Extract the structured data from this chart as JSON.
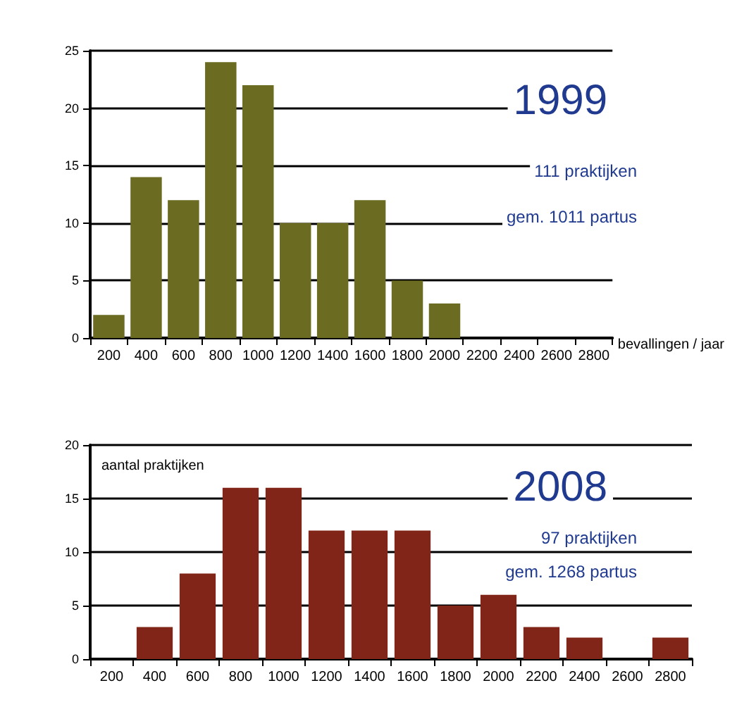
{
  "chart_data": [
    {
      "type": "bar",
      "title": "1999",
      "xlabel": "bevallingen / jaar",
      "categories": [
        "200",
        "400",
        "600",
        "800",
        "1000",
        "1200",
        "1400",
        "1600",
        "1800",
        "2000",
        "2200",
        "2400",
        "2600",
        "2800"
      ],
      "values": [
        2,
        14,
        12,
        24,
        22,
        10,
        10,
        12,
        5,
        3,
        0,
        0,
        0,
        0
      ],
      "color": "#6b6b22",
      "ylim": [
        0,
        25
      ],
      "yticks": [
        0,
        5,
        10,
        15,
        20,
        25
      ],
      "grid": "y",
      "annotations": [
        "111 praktijken",
        "gem. 1011 partus"
      ]
    },
    {
      "type": "bar",
      "title": "2008",
      "ylabel": "aantal praktijken",
      "categories": [
        "200",
        "400",
        "600",
        "800",
        "1000",
        "1200",
        "1400",
        "1600",
        "1800",
        "2000",
        "2200",
        "2400",
        "2600",
        "2800"
      ],
      "values": [
        0,
        3,
        8,
        16,
        16,
        12,
        12,
        12,
        5,
        6,
        3,
        2,
        0,
        2
      ],
      "color": "#822519",
      "ylim": [
        0,
        20
      ],
      "yticks": [
        0,
        5,
        10,
        15,
        20
      ],
      "grid": "y",
      "annotations": [
        "97 praktijken",
        "gem. 1268 partus"
      ]
    }
  ]
}
